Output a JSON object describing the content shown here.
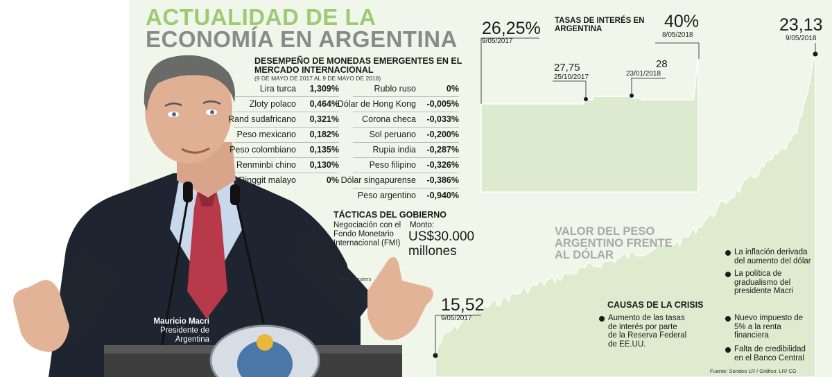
{
  "header": {
    "title_line1": "ACTUALIDAD DE LA",
    "title_line2": "ECONOMÍA EN ARGENTINA"
  },
  "currencies": {
    "title_line1": "DESEMPEÑO DE MONEDAS EMERGENTES EN EL",
    "title_line2": "MERCADO INTERNACIONAL",
    "subtitle": "(9 DE MAYO DE 2017 AL 9 DE MAYO DE 2018)",
    "left": [
      {
        "name": "Lira turca",
        "value": "1,309%"
      },
      {
        "name": "Zloty polaco",
        "value": "0,464%"
      },
      {
        "name": "Rand sudafricano",
        "value": "0,321%"
      },
      {
        "name": "Peso mexicano",
        "value": "0,182%"
      },
      {
        "name": "Peso colombiano",
        "value": "0,135%"
      },
      {
        "name": "Renminbi chino",
        "value": "0,130%"
      },
      {
        "name": "Ringgit malayo",
        "value": "0%"
      }
    ],
    "right": [
      {
        "name": "Rublo ruso",
        "value": "0%"
      },
      {
        "name": "Dólar de Hong Kong",
        "value": "-0,005%"
      },
      {
        "name": "Corona checa",
        "value": "-0,033%"
      },
      {
        "name": "Sol peruano",
        "value": "-0,200%"
      },
      {
        "name": "Rupia india",
        "value": "-0,287%"
      },
      {
        "name": "Peso filipino",
        "value": "-0,326%"
      },
      {
        "name": "Dólar singapurense",
        "value": "-0,386%"
      },
      {
        "name": "Peso argentino",
        "value": "-0,940%"
      }
    ]
  },
  "tactics": {
    "title": "TÁCTICAS DEL GOBIERNO",
    "text": [
      "Negociación con el",
      "Fondo Monetario",
      "Internacional (FMI)"
    ],
    "amount_label": "Monto:",
    "amount_value": "US$30.000",
    "amount_unit": "millones",
    "photo_credit": "Foto: Reuters"
  },
  "person": {
    "name": "Mauricio Macri",
    "role_line1": "Presidente de",
    "role_line2": "Argentina"
  },
  "rates_chart": {
    "title_line1": "TASAS DE INTERÉS EN",
    "title_line2": "ARGENTINA",
    "annotations": [
      {
        "value": "26,25%",
        "date": "9/05/2017"
      },
      {
        "value": "27,75",
        "date": "25/10/2017"
      },
      {
        "value": "28",
        "date": "23/01/2018"
      },
      {
        "value": "40%",
        "date": "8/05/2018"
      }
    ]
  },
  "peso_chart": {
    "title_line1": "VALOR DEL PESO",
    "title_line2": "ARGENTINO FRENTE",
    "title_line3": "AL DÓLAR",
    "start": {
      "value": "15,52",
      "date": "9/05/2017"
    },
    "end": {
      "value": "23,13",
      "date": "9/05/2018"
    }
  },
  "crisis": {
    "title": "CAUSAS DE LA CRISIS",
    "items": [
      [
        "Aumento de las tasas",
        "de interés por parte",
        "de la Reserva Federal",
        "de EE.UU."
      ],
      [
        "La inflación derivada",
        "del aumento del dólar"
      ],
      [
        "La política de",
        "gradualismo del",
        "presidente Macri"
      ],
      [
        "Nuevo impuesto de",
        "5% a la renta",
        "financiera"
      ],
      [
        "Falta de credibilidad",
        "en el Banco Central"
      ]
    ]
  },
  "source": "Fuente: Sondeo LR / Gráfico: LR/ CG",
  "colors": {
    "title_green": "#9ccb74",
    "title_gray": "#8a8a8a",
    "panel_bg": "#f1f6ea",
    "area_fill": "#dfebcf",
    "rates_fill": "#dcead0"
  },
  "chart_data": [
    {
      "type": "area",
      "title": "TASAS DE INTERÉS EN ARGENTINA",
      "x": [
        "9/05/2017",
        "25/10/2017",
        "23/01/2018",
        "8/05/2018"
      ],
      "y": [
        26.25,
        27.75,
        28,
        40
      ]
    },
    {
      "type": "area",
      "title": "VALOR DEL PESO ARGENTINO FRENTE AL DÓLAR",
      "x": [
        "9/05/2017",
        "9/05/2018"
      ],
      "y": [
        15.52,
        23.13
      ]
    }
  ]
}
